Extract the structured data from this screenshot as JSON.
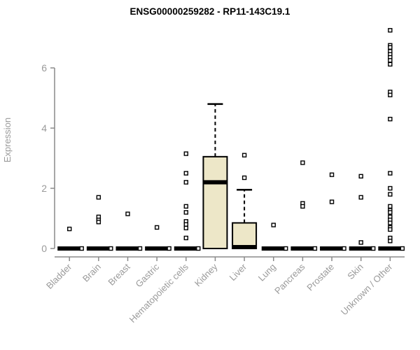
{
  "chart_data": {
    "type": "boxplot",
    "title": "ENSG00000259282 - RP11-143C19.1",
    "xlabel": "",
    "ylabel": "Expression",
    "ylim": [
      0,
      7.5
    ],
    "yticks": [
      0,
      2,
      4,
      6
    ],
    "grid": false,
    "legend": false,
    "axis_color": "#8a8a8a",
    "label_color": "#9a9a9a",
    "title_color": "#000000",
    "box_fill": "#ede7c8",
    "box_stroke": "#000000",
    "categories": [
      "Bladder",
      "Brain",
      "Breast",
      "Gastric",
      "Hematopoietic cells",
      "Kidney",
      "Liver",
      "Lung",
      "Pancreas",
      "Prostate",
      "Skin",
      "Unknown / Other"
    ],
    "boxes": [
      {
        "category": "Bladder",
        "q1": 0,
        "median": 0,
        "q3": 0,
        "whisker_low": 0,
        "whisker_high": 0,
        "zero_point": true,
        "outliers": [
          0.65
        ]
      },
      {
        "category": "Brain",
        "q1": 0,
        "median": 0,
        "q3": 0,
        "whisker_low": 0,
        "whisker_high": 0,
        "zero_point": true,
        "outliers": [
          1.7,
          1.05,
          0.95,
          0.88
        ]
      },
      {
        "category": "Breast",
        "q1": 0,
        "median": 0,
        "q3": 0,
        "whisker_low": 0,
        "whisker_high": 0,
        "zero_point": true,
        "outliers": [
          1.15
        ]
      },
      {
        "category": "Gastric",
        "q1": 0,
        "median": 0,
        "q3": 0,
        "whisker_low": 0,
        "whisker_high": 0,
        "zero_point": true,
        "outliers": [
          0.7
        ]
      },
      {
        "category": "Hematopoietic cells",
        "q1": 0,
        "median": 0,
        "q3": 0,
        "whisker_low": 0,
        "whisker_high": 0,
        "zero_point": true,
        "outliers": [
          3.15,
          2.5,
          2.2,
          1.4,
          1.2,
          0.9,
          0.8,
          0.68,
          0.35
        ]
      },
      {
        "category": "Kidney",
        "q1": 0,
        "median": 2.2,
        "q3": 3.05,
        "whisker_low": 0,
        "whisker_high": 4.8,
        "zero_point": false,
        "outliers": []
      },
      {
        "category": "Liver",
        "q1": 0,
        "median": 0,
        "q3": 0.85,
        "whisker_low": 0,
        "whisker_high": 1.95,
        "zero_point": false,
        "outliers": [
          3.1,
          2.35
        ]
      },
      {
        "category": "Lung",
        "q1": 0,
        "median": 0,
        "q3": 0,
        "whisker_low": 0,
        "whisker_high": 0,
        "zero_point": true,
        "outliers": [
          0.78
        ]
      },
      {
        "category": "Pancreas",
        "q1": 0,
        "median": 0,
        "q3": 0,
        "whisker_low": 0,
        "whisker_high": 0,
        "zero_point": true,
        "outliers": [
          2.85,
          1.5,
          1.4
        ]
      },
      {
        "category": "Prostate",
        "q1": 0,
        "median": 0,
        "q3": 0,
        "whisker_low": 0,
        "whisker_high": 0,
        "zero_point": true,
        "outliers": [
          2.45,
          1.55
        ]
      },
      {
        "category": "Skin",
        "q1": 0,
        "median": 0,
        "q3": 0,
        "whisker_low": 0,
        "whisker_high": 0,
        "zero_point": true,
        "outliers": [
          2.4,
          1.7,
          0.2
        ]
      },
      {
        "category": "Unknown / Other",
        "q1": 0,
        "median": 0,
        "q3": 0,
        "whisker_low": 0,
        "whisker_high": 0,
        "zero_point": true,
        "outliers": [
          7.25,
          6.75,
          6.68,
          6.55,
          6.45,
          6.35,
          6.25,
          6.12,
          5.2,
          5.1,
          4.3,
          2.5,
          2.0,
          1.8,
          1.4,
          1.27,
          1.2,
          1.05,
          0.95,
          0.85,
          0.7,
          0.63,
          0.35,
          0.25
        ]
      }
    ]
  }
}
